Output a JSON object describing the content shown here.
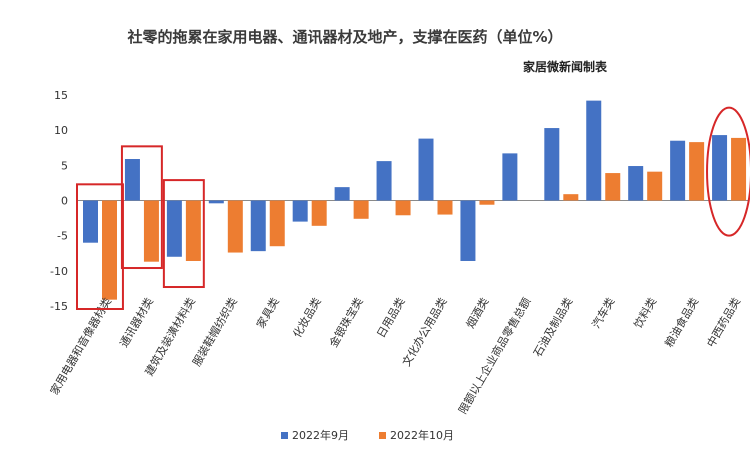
{
  "chart_data": {
    "type": "bar",
    "title": "社零的拖累在家用电器、通讯器材及地产，支撑在医药（单位%）",
    "subtitle": "家居微新闻制表",
    "categories": [
      "家用电器和音像器材类",
      "通讯器材类",
      "建筑及装潢材料类",
      "服装鞋帽纺织类",
      "家具类",
      "化妆品类",
      "金银珠宝类",
      "日用品类",
      "文化办公用品类",
      "烟酒类",
      "限额以上企业商品零售总额",
      "石油及制品类",
      "汽车类",
      "饮料类",
      "粮油食品类",
      "中西药品类"
    ],
    "series": [
      {
        "name": "2022年9月",
        "color": "#4472c4",
        "values": [
          -6.0,
          5.9,
          -8.0,
          -0.4,
          -7.2,
          -3.0,
          1.9,
          5.6,
          8.8,
          -8.6,
          6.7,
          10.3,
          14.2,
          4.9,
          8.5,
          9.3
        ]
      },
      {
        "name": "2022年10月",
        "color": "#ed7d31",
        "values": [
          -14.1,
          -8.7,
          -8.6,
          -7.4,
          -6.5,
          -3.6,
          -2.6,
          -2.1,
          -2.0,
          -0.6,
          null,
          0.9,
          3.9,
          4.1,
          8.3,
          8.9
        ]
      }
    ],
    "ylim": [
      -15,
      15
    ],
    "yticks": [
      15,
      10,
      5,
      0,
      -5,
      -10,
      -15
    ],
    "grid": false,
    "legend_position": "bottom",
    "highlight_color": "#d62728"
  }
}
